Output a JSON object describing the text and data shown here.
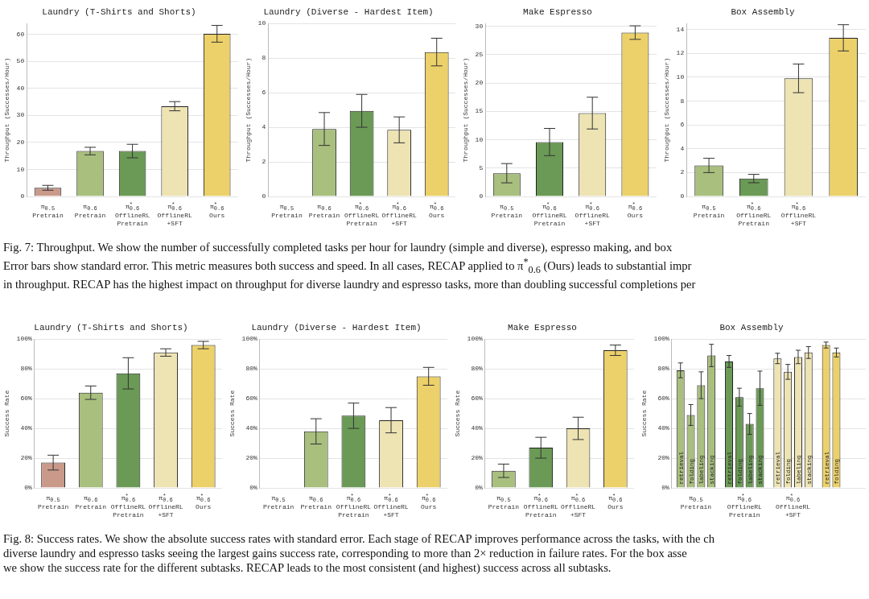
{
  "chart_data": [
    {
      "type": "bar",
      "title": "Laundry (T-Shirts and Shorts)",
      "ylabel": "Throughput (Successes/Hour)",
      "categories": [
        "π$_{0.5}$ Pretrain",
        "π$_{0.6}$ Pretrain",
        "π$^{*}$$_{0.6}$ OfflineRL Pretrain",
        "π$^{*}$$_{0.6}$ OfflineRL +SFT",
        "π$^{*}$$_{0.6}$ Ours"
      ],
      "values": [
        3.2,
        16.8,
        16.8,
        33.4,
        60.2
      ],
      "errors": [
        0.9,
        1.4,
        2.5,
        1.7,
        3.1
      ],
      "colors": [
        "#c9998a",
        "#a8bf7e",
        "#6a9a55",
        "#ede3b3",
        "#ecd16a"
      ],
      "ylim": [
        0,
        64
      ],
      "yticks": [
        0,
        10,
        20,
        30,
        40,
        50,
        60
      ],
      "grid": "y",
      "annotations": [
        "Fig. 7: Throughput. We show the number of successfully completed tasks per hour for laundry (simple and diverse), espresso making, and box\nError bars show standard error. This metric measures both success and speed. In all cases, RECAP applied to π$^{*}$$_{0.6}$ (Ours) leads to substantial impr\nin throughput. RECAP has the highest impact on throughput for diverse laundry and espresso tasks, more than doubling successful completions per"
      ]
    },
    {
      "type": "bar",
      "title": "Laundry (Diverse - Hardest Item)",
      "ylabel": "Throughput (Successes/Hour)",
      "categories": [
        "π$_{0.5}$ Pretrain",
        "π$_{0.6}$ Pretrain",
        "π$^{*}$$_{0.6}$ OfflineRL Pretrain",
        "π$^{*}$$_{0.6}$ OfflineRL +SFT",
        "π$^{*}$$_{0.6}$ Ours"
      ],
      "values": [
        0,
        3.9,
        4.95,
        3.85,
        8.35
      ],
      "errors": [
        null,
        0.95,
        0.95,
        0.75,
        0.8
      ],
      "colors": [
        "#c9998a",
        "#a8bf7e",
        "#6a9a55",
        "#ede3b3",
        "#ecd16a"
      ],
      "ylim": [
        0,
        10
      ],
      "yticks": [
        0,
        2,
        4,
        6,
        8,
        10
      ],
      "grid": "y"
    },
    {
      "type": "bar",
      "title": "Make Espresso",
      "ylabel": "Throughput (Successes/Hour)",
      "categories": [
        "π$_{0.5}$ Pretrain",
        "π$^{*}$$_{0.6}$ OfflineRL Pretrain",
        "π$^{*}$$_{0.6}$ OfflineRL +SFT",
        "π$^{*}$$_{0.6}$ Ours"
      ],
      "values": [
        4.1,
        9.6,
        14.7,
        28.9
      ],
      "errors": [
        1.7,
        2.4,
        2.8,
        1.2
      ],
      "colors": [
        "#a8bf7e",
        "#6a9a55",
        "#ede3b3",
        "#ecd16a"
      ],
      "ylim": [
        0,
        30.5
      ],
      "yticks": [
        0,
        5,
        10,
        15,
        20,
        25,
        30
      ],
      "grid": "y"
    },
    {
      "type": "bar",
      "title": "Box Assembly",
      "ylabel": "Throughput (Successes/Hour)",
      "categories": [
        "π$_{0.5}$ Pretrain",
        "π$^{*}$$_{0.6}$ OfflineRL Pretrain",
        "π$^{*}$$_{0.6}$ OfflineRL +SFT",
        null
      ],
      "values": [
        2.6,
        1.5,
        9.9,
        13.3
      ],
      "errors": [
        0.6,
        0.35,
        1.2,
        1.1
      ],
      "colors": [
        "#a8bf7e",
        "#6a9a55",
        "#ede3b3",
        "#ecd16a"
      ],
      "ylim": [
        0,
        14.5
      ],
      "yticks": [
        0,
        2,
        4,
        6,
        8,
        10,
        12,
        14
      ],
      "grid": "y"
    },
    {
      "type": "bar",
      "title": "Laundry (T-Shirts and Shorts)",
      "ylabel": "Success Rate",
      "categories": [
        "π$_{0.5}$ Pretrain",
        "π$_{0.6}$ Pretrain",
        "π$^{*}$$_{0.6}$ OfflineRL Pretrain",
        "π$^{*}$$_{0.6}$ OfflineRL +SFT",
        "π$^{*}$$_{0.6}$ Ours"
      ],
      "values": [
        17,
        64,
        77,
        91,
        96
      ],
      "errors": [
        5,
        4.5,
        10.5,
        2.5,
        2.5
      ],
      "colors": [
        "#c9998a",
        "#a8bf7e",
        "#6a9a55",
        "#ede3b3",
        "#ecd16a"
      ],
      "ylim": [
        0,
        100
      ],
      "yticks": [
        {
          "value": 0,
          "label": "0%"
        },
        {
          "value": 20,
          "label": "20%"
        },
        {
          "value": 40,
          "label": "40%"
        },
        {
          "value": 60,
          "label": "60%"
        },
        {
          "value": 80,
          "label": "80%"
        },
        {
          "value": 100,
          "label": "100%"
        }
      ],
      "grid": "y",
      "annotations": [
        "Fig. 8: Success rates. We show the absolute success rates with standard error. Each stage of RECAP improves performance across the tasks, with the ch\ndiverse laundry and espresso tasks seeing the largest gains success rate, corresponding to more than 2× reduction in failure rates. For the box asse\nwe show the success rate for the different subtasks. RECAP leads to the most consistent (and highest) success across all subtasks."
      ]
    },
    {
      "type": "bar",
      "title": "Laundry (Diverse - Hardest Item)",
      "ylabel": "Success Rate",
      "categories": [
        "π$_{0.5}$ Pretrain",
        "π$_{0.6}$ Pretrain",
        "π$^{*}$$_{0.6}$ OfflineRL Pretrain",
        "π$^{*}$$_{0.6}$ OfflineRL +SFT",
        "π$^{*}$$_{0.6}$ Ours"
      ],
      "values": [
        0,
        38,
        48.5,
        45.5,
        75
      ],
      "errors": [
        null,
        8.5,
        8.5,
        8.5,
        6
      ],
      "colors": [
        "#c9998a",
        "#a8bf7e",
        "#6a9a55",
        "#ede3b3",
        "#ecd16a"
      ],
      "ylim": [
        0,
        100
      ],
      "yticks": [
        {
          "value": 0,
          "label": "0%"
        },
        {
          "value": 20,
          "label": "20%"
        },
        {
          "value": 40,
          "label": "40%"
        },
        {
          "value": 60,
          "label": "60%"
        },
        {
          "value": 80,
          "label": "80%"
        },
        {
          "value": 100,
          "label": "100%"
        }
      ],
      "grid": "y"
    },
    {
      "type": "bar",
      "title": "Make Espresso",
      "ylabel": "Success Rate",
      "categories": [
        "π$_{0.5}$ Pretrain",
        "π$^{*}$$_{0.6}$ OfflineRL Pretrain",
        "π$^{*}$$_{0.6}$ OfflineRL +SFT",
        "π$^{*}$$_{0.6}$ Ours"
      ],
      "values": [
        11.5,
        27,
        40,
        92.5
      ],
      "errors": [
        4.5,
        7,
        7.5,
        3.5
      ],
      "colors": [
        "#a8bf7e",
        "#6a9a55",
        "#ede3b3",
        "#ecd16a"
      ],
      "ylim": [
        0,
        100
      ],
      "yticks": [
        {
          "value": 0,
          "label": "0%"
        },
        {
          "value": 20,
          "label": "20%"
        },
        {
          "value": 40,
          "label": "40%"
        },
        {
          "value": 60,
          "label": "60%"
        },
        {
          "value": 80,
          "label": "80%"
        },
        {
          "value": 100,
          "label": "100%"
        }
      ],
      "grid": "y"
    },
    {
      "type": "bar",
      "title": "Box Assembly",
      "ylabel": "Success Rate",
      "categories": [
        "π$_{0.5}$ Pretrain",
        "π$^{*}$$_{0.6}$ OfflineRL Pretrain",
        "π$^{*}$$_{0.6}$ OfflineRL +SFT",
        null
      ],
      "series": [
        {
          "name": "retrieval",
          "colors": [
            "#a8bf7e",
            "#6a9a55",
            "#ede3b3",
            "#ecd16a"
          ],
          "values": [
            79,
            85,
            87,
            96
          ],
          "errors": [
            5,
            4,
            3.5,
            2
          ]
        },
        {
          "name": "folding",
          "colors": [
            "#a8bf7e",
            "#6a9a55",
            "#ede3b3",
            "#ecd16a"
          ],
          "values": [
            49,
            61,
            78,
            91
          ],
          "errors": [
            7,
            6,
            5,
            3
          ]
        },
        {
          "name": "labeling",
          "colors": [
            "#a8bf7e",
            "#6a9a55",
            "#ede3b3",
            "#ecd16a"
          ],
          "values": [
            69,
            43,
            88,
            null
          ],
          "errors": [
            9,
            7,
            4.5,
            null
          ]
        },
        {
          "name": "stacking",
          "colors": [
            "#a8bf7e",
            "#6a9a55",
            "#ede3b3",
            "#ecd16a"
          ],
          "values": [
            89,
            67,
            91,
            null
          ],
          "errors": [
            7.5,
            11.5,
            4,
            null
          ]
        }
      ],
      "ylim": [
        0,
        100
      ],
      "yticks": [
        {
          "value": 0,
          "label": "0%"
        },
        {
          "value": 20,
          "label": "20%"
        },
        {
          "value": 40,
          "label": "40%"
        },
        {
          "value": 60,
          "label": "60%"
        },
        {
          "value": 80,
          "label": "80%"
        },
        {
          "value": 100,
          "label": "100%"
        }
      ],
      "grid": "y"
    }
  ]
}
